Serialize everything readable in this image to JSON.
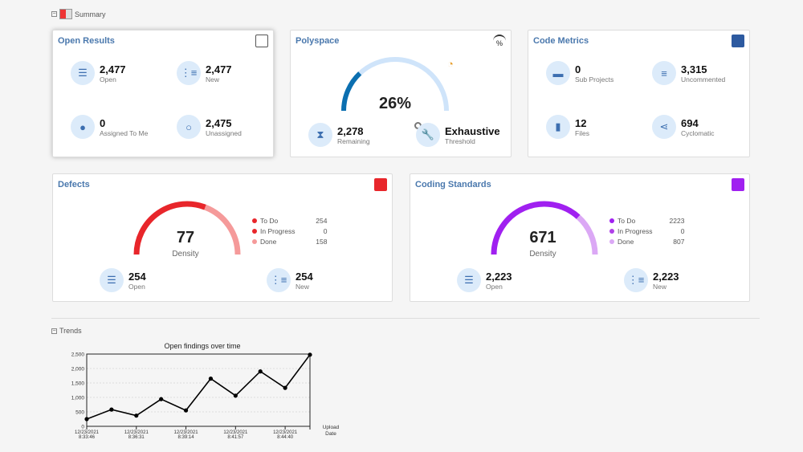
{
  "summary": {
    "label": "Summary"
  },
  "open_results": {
    "title": "Open Results",
    "stats": [
      {
        "value": "2,477",
        "label": "Open",
        "icon": "list-icon"
      },
      {
        "value": "2,477",
        "label": "New",
        "icon": "new-list-icon"
      },
      {
        "value": "0",
        "label": "Assigned To Me",
        "icon": "user-icon"
      },
      {
        "value": "2,475",
        "label": "Unassigned",
        "icon": "user-outline-icon"
      }
    ]
  },
  "polyspace": {
    "title": "Polyspace",
    "percent": "26%",
    "progress": 26,
    "stats": [
      {
        "value": "2,278",
        "label": "Remaining",
        "icon": "hourglass-icon"
      },
      {
        "value": "Exhaustive",
        "label": "Threshold",
        "icon": "wrench-icon"
      }
    ]
  },
  "code_metrics": {
    "title": "Code Metrics",
    "stats": [
      {
        "value": "0",
        "label": "Sub Projects",
        "icon": "folder-icon"
      },
      {
        "value": "3,315",
        "label": "Uncommented",
        "icon": "lines-icon"
      },
      {
        "value": "12",
        "label": "Files",
        "icon": "file-icon"
      },
      {
        "value": "694",
        "label": "Cyclomatic",
        "icon": "share-icon"
      }
    ]
  },
  "defects": {
    "title": "Defects",
    "value": "77",
    "sub": "Density",
    "colors": {
      "todo": "#e8262b",
      "progress": "#e8262b",
      "done": "#f59a9a",
      "bg": "#f5b5b5"
    },
    "legend": [
      {
        "label": "To Do",
        "value": "254"
      },
      {
        "label": "In Progress",
        "value": "0"
      },
      {
        "label": "Done",
        "value": "158"
      }
    ],
    "stats": [
      {
        "value": "254",
        "label": "Open"
      },
      {
        "value": "254",
        "label": "New"
      }
    ]
  },
  "coding_standards": {
    "title": "Coding Standards",
    "value": "671",
    "sub": "Density",
    "colors": {
      "todo": "#a020f0",
      "progress": "#b040e8",
      "done": "#dba8f5",
      "bg": "#e5c2f8"
    },
    "legend": [
      {
        "label": "To Do",
        "value": "2223"
      },
      {
        "label": "In Progress",
        "value": "0"
      },
      {
        "label": "Done",
        "value": "807"
      }
    ],
    "stats": [
      {
        "value": "2,223",
        "label": "Open"
      },
      {
        "value": "2,223",
        "label": "New"
      }
    ]
  },
  "trends": {
    "label": "Trends"
  },
  "chart_data": {
    "type": "line",
    "title": "Open findings over time",
    "xlabel": "Upload Date",
    "ylabel": "",
    "ylim": [
      0,
      2500
    ],
    "yticks": [
      "0",
      "500",
      "1,000",
      "1,500",
      "2,000",
      "2,500"
    ],
    "xticks": [
      "12/23/2021 8:33:46",
      "12/23/2021 8:36:31",
      "12/23/2021 8:39:14",
      "12/23/2021 8:41:57",
      "12/23/2021 8:44:40"
    ],
    "values": [
      250,
      580,
      370,
      940,
      550,
      1650,
      1060,
      1900,
      1330,
      2477
    ],
    "grid": true
  }
}
